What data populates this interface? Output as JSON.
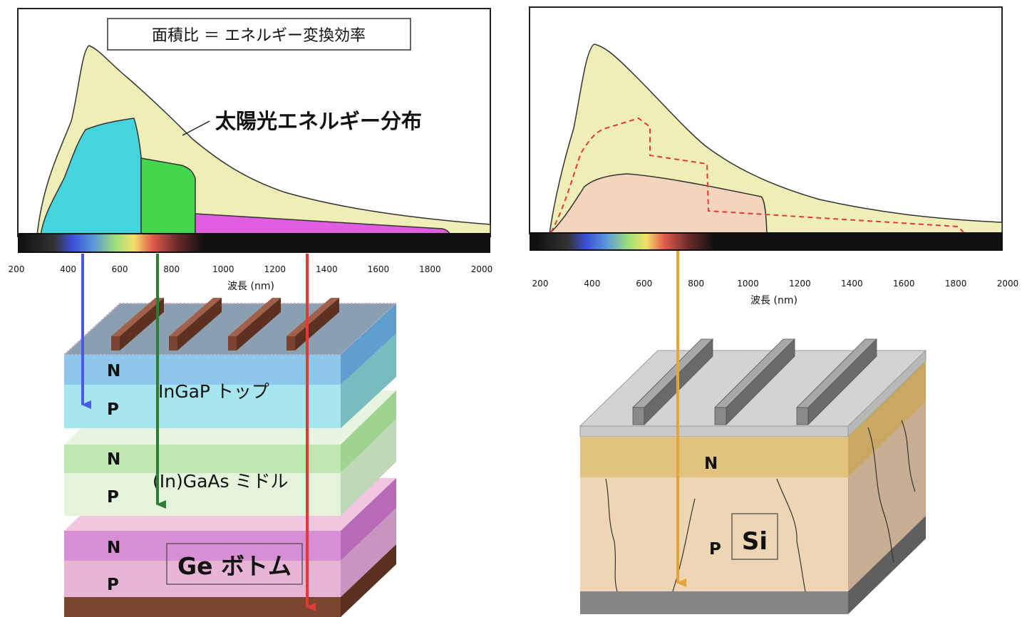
{
  "colors": {
    "sun": "#efeeb7",
    "top_cell": "#45d3dc",
    "middle_cell": "#44d64c",
    "bottom_cell": "#e05ce0",
    "si_cell": "#f2d5bc",
    "arrow_blue": "#4a5ae0",
    "arrow_green": "#2e7d32",
    "arrow_red": "#e53935",
    "arrow_orange": "#e8a43c"
  },
  "left_panel": {
    "legend_box": "面積比 ＝ エネルギー変換効率",
    "sun_label": "太陽光エネルギー分布",
    "axis_ticks": [
      "200",
      "400",
      "600",
      "800",
      "1000",
      "1200",
      "1400",
      "1600",
      "1800",
      "2000"
    ],
    "xlabel": "波長 (nm)",
    "layers": [
      {
        "n_label": "N",
        "p_label": "P",
        "name": "InGaP トップ"
      },
      {
        "n_label": "N",
        "p_label": "P",
        "name": "(In)GaAs ミドル"
      },
      {
        "n_label": "N",
        "p_label": "P",
        "name": "Ge ボトム"
      }
    ]
  },
  "right_panel": {
    "axis_ticks": [
      "200",
      "400",
      "600",
      "800",
      "1000",
      "1200",
      "1400",
      "1600",
      "1800",
      "2000"
    ],
    "xlabel": "波長 (nm)",
    "n_label": "N",
    "p_label": "P",
    "material_label": "Si"
  }
}
